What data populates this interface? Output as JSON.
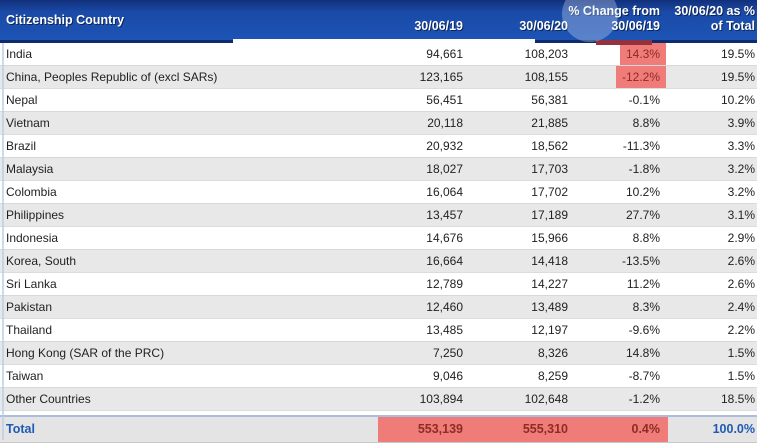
{
  "table": {
    "header": {
      "country": "Citizenship Country",
      "y2019": "30/06/19",
      "y2020": "30/06/20",
      "change_line1": "% Change from",
      "change_line2": "30/06/19",
      "share_line1": "30/06/20 as %",
      "share_line2": "of Total"
    },
    "rows": [
      {
        "country": "India",
        "v2019": "94,661",
        "v2020": "108,203",
        "change": "14.3%",
        "share": "19.5%",
        "highlight": true
      },
      {
        "country": "China, Peoples Republic of (excl SARs)",
        "v2019": "123,165",
        "v2020": "108,155",
        "change": "-12.2%",
        "share": "19.5%",
        "highlight": true
      },
      {
        "country": "Nepal",
        "v2019": "56,451",
        "v2020": "56,381",
        "change": "-0.1%",
        "share": "10.2%",
        "highlight": false
      },
      {
        "country": "Vietnam",
        "v2019": "20,118",
        "v2020": "21,885",
        "change": "8.8%",
        "share": "3.9%",
        "highlight": false
      },
      {
        "country": "Brazil",
        "v2019": "20,932",
        "v2020": "18,562",
        "change": "-11.3%",
        "share": "3.3%",
        "highlight": false
      },
      {
        "country": "Malaysia",
        "v2019": "18,027",
        "v2020": "17,703",
        "change": "-1.8%",
        "share": "3.2%",
        "highlight": false
      },
      {
        "country": "Colombia",
        "v2019": "16,064",
        "v2020": "17,702",
        "change": "10.2%",
        "share": "3.2%",
        "highlight": false
      },
      {
        "country": "Philippines",
        "v2019": "13,457",
        "v2020": "17,189",
        "change": "27.7%",
        "share": "3.1%",
        "highlight": false
      },
      {
        "country": "Indonesia",
        "v2019": "14,676",
        "v2020": "15,966",
        "change": "8.8%",
        "share": "2.9%",
        "highlight": false
      },
      {
        "country": "Korea, South",
        "v2019": "16,664",
        "v2020": "14,418",
        "change": "-13.5%",
        "share": "2.6%",
        "highlight": false
      },
      {
        "country": "Sri Lanka",
        "v2019": "12,789",
        "v2020": "14,227",
        "change": "11.2%",
        "share": "2.6%",
        "highlight": false
      },
      {
        "country": "Pakistan",
        "v2019": "12,460",
        "v2020": "13,489",
        "change": "8.3%",
        "share": "2.4%",
        "highlight": false
      },
      {
        "country": "Thailand",
        "v2019": "13,485",
        "v2020": "12,197",
        "change": "-9.6%",
        "share": "2.2%",
        "highlight": false
      },
      {
        "country": "Hong Kong (SAR of the PRC)",
        "v2019": "7,250",
        "v2020": "8,326",
        "change": "14.8%",
        "share": "1.5%",
        "highlight": false
      },
      {
        "country": "Taiwan",
        "v2019": "9,046",
        "v2020": "8,259",
        "change": "-8.7%",
        "share": "1.5%",
        "highlight": false
      },
      {
        "country": "Other Countries",
        "v2019": "103,894",
        "v2020": "102,648",
        "change": "-1.2%",
        "share": "18.5%",
        "highlight": false
      }
    ],
    "total": {
      "label": "Total",
      "v2019": "553,139",
      "v2020": "555,310",
      "change": "0.4%",
      "share": "100.0%"
    }
  },
  "colors": {
    "header_blue": "#1d54b5",
    "header_dark_navy": "#0e2c6b",
    "row_alt_gray": "#e8e8e8",
    "highlight_red": "#ef7c79",
    "highlight_text_red": "#8f2b24",
    "total_label_blue": "#1e5bb5",
    "total_row_gray": "#e4e4e4"
  }
}
